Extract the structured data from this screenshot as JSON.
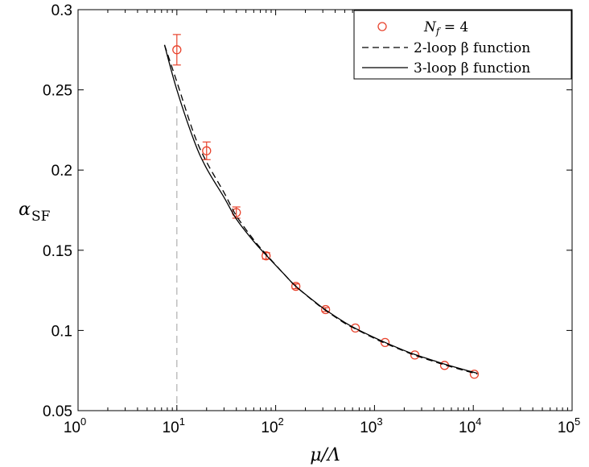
{
  "chart_data": {
    "type": "scatter",
    "xlabel": "μ/Λ",
    "ylabel": "α",
    "ylabel_sub": "SF",
    "xscale": "log",
    "xlim": [
      1,
      100000
    ],
    "ylim": [
      0.05,
      0.3
    ],
    "x_ticks": [
      {
        "base": "10",
        "exp": "0"
      },
      {
        "base": "10",
        "exp": "1"
      },
      {
        "base": "10",
        "exp": "2"
      },
      {
        "base": "10",
        "exp": "3"
      },
      {
        "base": "10",
        "exp": "4"
      },
      {
        "base": "10",
        "exp": "5"
      }
    ],
    "y_ticks": [
      "0.05",
      "0.1",
      "0.15",
      "0.2",
      "0.25",
      "0.3"
    ],
    "reference_line": {
      "x": 10,
      "style": "dashed",
      "color": "#b0b0b0"
    },
    "legend_position": "top-right",
    "series": [
      {
        "name": "N_f = 4",
        "legend_main": "N",
        "legend_sub": "f",
        "legend_rest": " = 4",
        "kind": "points",
        "marker": "circle",
        "color": "#e8432d",
        "points": [
          {
            "x": 10,
            "y": 0.275,
            "err": 0.0095
          },
          {
            "x": 20,
            "y": 0.212,
            "err": 0.0055
          },
          {
            "x": 40,
            "y": 0.1735,
            "err": 0.0035
          },
          {
            "x": 80,
            "y": 0.1465,
            "err": 0.002
          },
          {
            "x": 160,
            "y": 0.1275,
            "err": 0.0015
          },
          {
            "x": 320,
            "y": 0.113,
            "err": 0.0012
          },
          {
            "x": 640,
            "y": 0.1015,
            "err": 0.001
          },
          {
            "x": 1280,
            "y": 0.0925,
            "err": 0.0008
          },
          {
            "x": 2560,
            "y": 0.0847,
            "err": 0.0007
          },
          {
            "x": 5120,
            "y": 0.0782,
            "err": 0.0006
          },
          {
            "x": 10240,
            "y": 0.0727,
            "err": 0.0005
          }
        ]
      },
      {
        "name": "2-loop β function",
        "legend_label": "2-loop β function",
        "kind": "line",
        "style": "dashed",
        "color": "#000000",
        "points": [
          {
            "x": 7.5,
            "y": 0.278
          },
          {
            "x": 10,
            "y": 0.255
          },
          {
            "x": 15,
            "y": 0.222
          },
          {
            "x": 20,
            "y": 0.205
          },
          {
            "x": 30,
            "y": 0.186
          },
          {
            "x": 40,
            "y": 0.1715
          },
          {
            "x": 60,
            "y": 0.1565
          },
          {
            "x": 80,
            "y": 0.1475
          },
          {
            "x": 120,
            "y": 0.1355
          },
          {
            "x": 160,
            "y": 0.1275
          },
          {
            "x": 250,
            "y": 0.1175
          },
          {
            "x": 320,
            "y": 0.1125
          },
          {
            "x": 500,
            "y": 0.1045
          },
          {
            "x": 640,
            "y": 0.101
          },
          {
            "x": 1000,
            "y": 0.095
          },
          {
            "x": 1280,
            "y": 0.092
          },
          {
            "x": 2000,
            "y": 0.0871
          },
          {
            "x": 2560,
            "y": 0.0845
          },
          {
            "x": 4000,
            "y": 0.0806
          },
          {
            "x": 5120,
            "y": 0.0785
          },
          {
            "x": 8000,
            "y": 0.0751
          },
          {
            "x": 11000,
            "y": 0.0728
          }
        ]
      },
      {
        "name": "3-loop β function",
        "legend_label": "3-loop β function",
        "kind": "line",
        "style": "solid",
        "color": "#000000",
        "points": [
          {
            "x": 7.5,
            "y": 0.278
          },
          {
            "x": 10,
            "y": 0.25
          },
          {
            "x": 15,
            "y": 0.218
          },
          {
            "x": 20,
            "y": 0.201
          },
          {
            "x": 30,
            "y": 0.183
          },
          {
            "x": 40,
            "y": 0.1695
          },
          {
            "x": 60,
            "y": 0.1555
          },
          {
            "x": 80,
            "y": 0.147
          },
          {
            "x": 120,
            "y": 0.1355
          },
          {
            "x": 160,
            "y": 0.1275
          },
          {
            "x": 250,
            "y": 0.1178
          },
          {
            "x": 320,
            "y": 0.1128
          },
          {
            "x": 500,
            "y": 0.105
          },
          {
            "x": 640,
            "y": 0.1013
          },
          {
            "x": 1000,
            "y": 0.0955
          },
          {
            "x": 1280,
            "y": 0.0925
          },
          {
            "x": 2000,
            "y": 0.0875
          },
          {
            "x": 2560,
            "y": 0.085
          },
          {
            "x": 4000,
            "y": 0.0811
          },
          {
            "x": 5120,
            "y": 0.079
          },
          {
            "x": 8000,
            "y": 0.0756
          },
          {
            "x": 11000,
            "y": 0.0733
          }
        ]
      }
    ]
  }
}
